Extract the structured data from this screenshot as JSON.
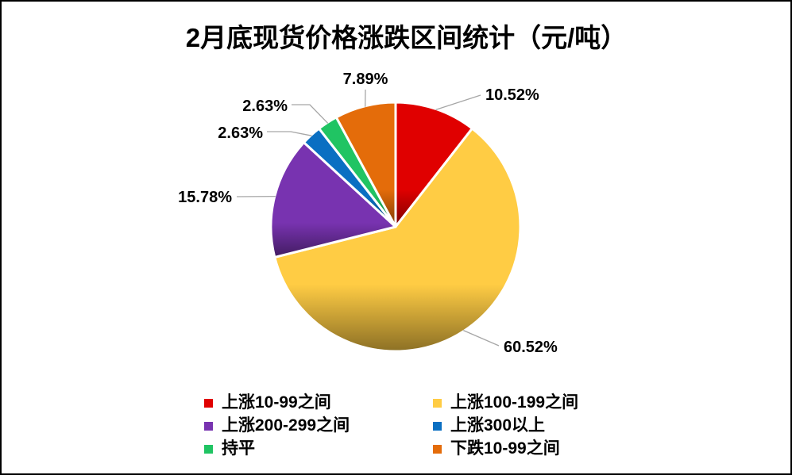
{
  "chart_data": {
    "type": "pie",
    "title": "2月底现货价格涨跌区间统计（元/吨）",
    "categories": [
      "上涨10-99之间",
      "上涨100-199之间",
      "上涨200-299之间",
      "上涨300以上",
      "持平",
      "下跌10-99之间"
    ],
    "values": [
      10.52,
      60.52,
      15.78,
      2.63,
      2.63,
      7.89
    ],
    "value_suffix": "%",
    "colors": [
      "#e00000",
      "#ffcc44",
      "#7833b0",
      "#0a6fc2",
      "#20c463",
      "#e46c0a"
    ],
    "legend_position": "bottom"
  }
}
